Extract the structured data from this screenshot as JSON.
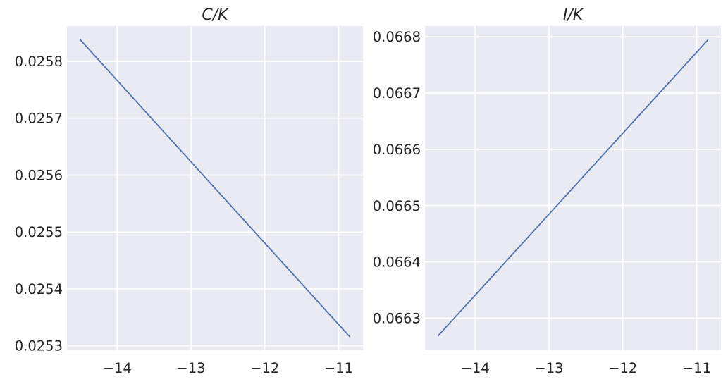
{
  "chart_data": [
    {
      "type": "line",
      "title": "C/K",
      "xlabel": "",
      "ylabel": "",
      "xlim": [
        -14.68,
        -10.67
      ],
      "ylim": [
        0.025292,
        0.025862
      ],
      "x_ticks": [
        -14,
        -13,
        -12,
        -11
      ],
      "x_tick_labels": [
        "−14",
        "−13",
        "−12",
        "−11"
      ],
      "y_ticks": [
        0.0253,
        0.0254,
        0.0255,
        0.0256,
        0.0257,
        0.0258
      ],
      "y_tick_labels": [
        "0.0253",
        "0.0254",
        "0.0255",
        "0.0256",
        "0.0257",
        "0.0258"
      ],
      "grid": true,
      "series": [
        {
          "color": "#4c72b0",
          "x": [
            -14.5,
            -10.85
          ],
          "y": [
            0.025838,
            0.025316
          ]
        }
      ]
    },
    {
      "type": "line",
      "title": "I/K",
      "xlabel": "",
      "ylabel": "",
      "xlim": [
        -14.68,
        -10.67
      ],
      "ylim": [
        0.066243,
        0.066819
      ],
      "x_ticks": [
        -14,
        -13,
        -12,
        -11
      ],
      "x_tick_labels": [
        "−14",
        "−13",
        "−12",
        "−11"
      ],
      "y_ticks": [
        0.0663,
        0.0664,
        0.0665,
        0.0666,
        0.0667,
        0.0668
      ],
      "y_tick_labels": [
        "0.0663",
        "0.0664",
        "0.0665",
        "0.0666",
        "0.0667",
        "0.0668"
      ],
      "grid": true,
      "series": [
        {
          "color": "#4c72b0",
          "x": [
            -14.5,
            -10.85
          ],
          "y": [
            0.066269,
            0.066794
          ]
        }
      ]
    }
  ]
}
